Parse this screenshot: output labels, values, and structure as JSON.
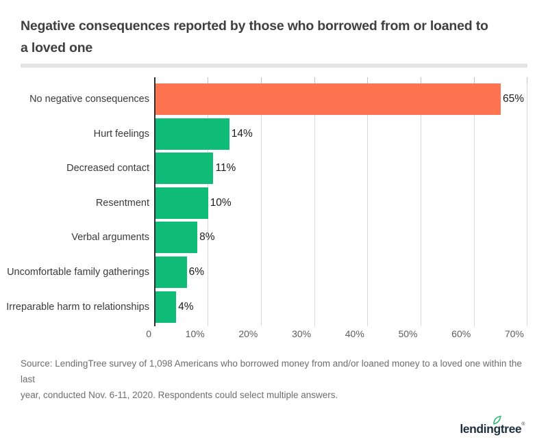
{
  "header": {
    "title": "Negative consequences reported by those who borrowed from or loaned to a loved one",
    "title_lines": [
      "Negative consequences reported by those who borrowed from or loaned to",
      "a loved one"
    ]
  },
  "chart_data": {
    "type": "bar",
    "orientation": "horizontal",
    "title": "Negative consequences reported by those who borrowed from or loaned to a loved one",
    "categories": [
      "No negative consequences",
      "Hurt feelings",
      "Decreased contact",
      "Resentment",
      "Verbal arguments",
      "Uncomfortable family gatherings",
      "Irreparable harm to relationships"
    ],
    "values": [
      65,
      14,
      11,
      10,
      8,
      6,
      4
    ],
    "value_labels": [
      "65%",
      "14%",
      "11%",
      "10%",
      "8%",
      "6%",
      "4%"
    ],
    "bar_colors": [
      "#ff7450",
      "#0ebc77",
      "#0ebc77",
      "#0ebc77",
      "#0ebc77",
      "#0ebc77",
      "#0ebc77"
    ],
    "xlabel": "",
    "ylabel": "",
    "xlim": [
      0,
      70
    ],
    "x_ticks": [
      0,
      10,
      20,
      30,
      40,
      50,
      60,
      70
    ],
    "x_tick_labels": [
      "0",
      "10%",
      "20%",
      "30%",
      "40%",
      "50%",
      "60%",
      "70%"
    ],
    "grid": true,
    "legend": false
  },
  "colors": {
    "accent_orange": "#ff7450",
    "accent_green": "#0ebc77",
    "logo_navy": "#1e2f3f",
    "leaf_green": "#35b778"
  },
  "source": {
    "lines": [
      "Source: LendingTree survey of 1,098 Americans who borrowed money from and/or loaned money to a loved one within the last",
      "year, conducted Nov. 6-11, 2020. Respondents could select multiple answers."
    ]
  },
  "footer": {
    "logo_text": "lendingtree",
    "registered_mark": "®"
  }
}
